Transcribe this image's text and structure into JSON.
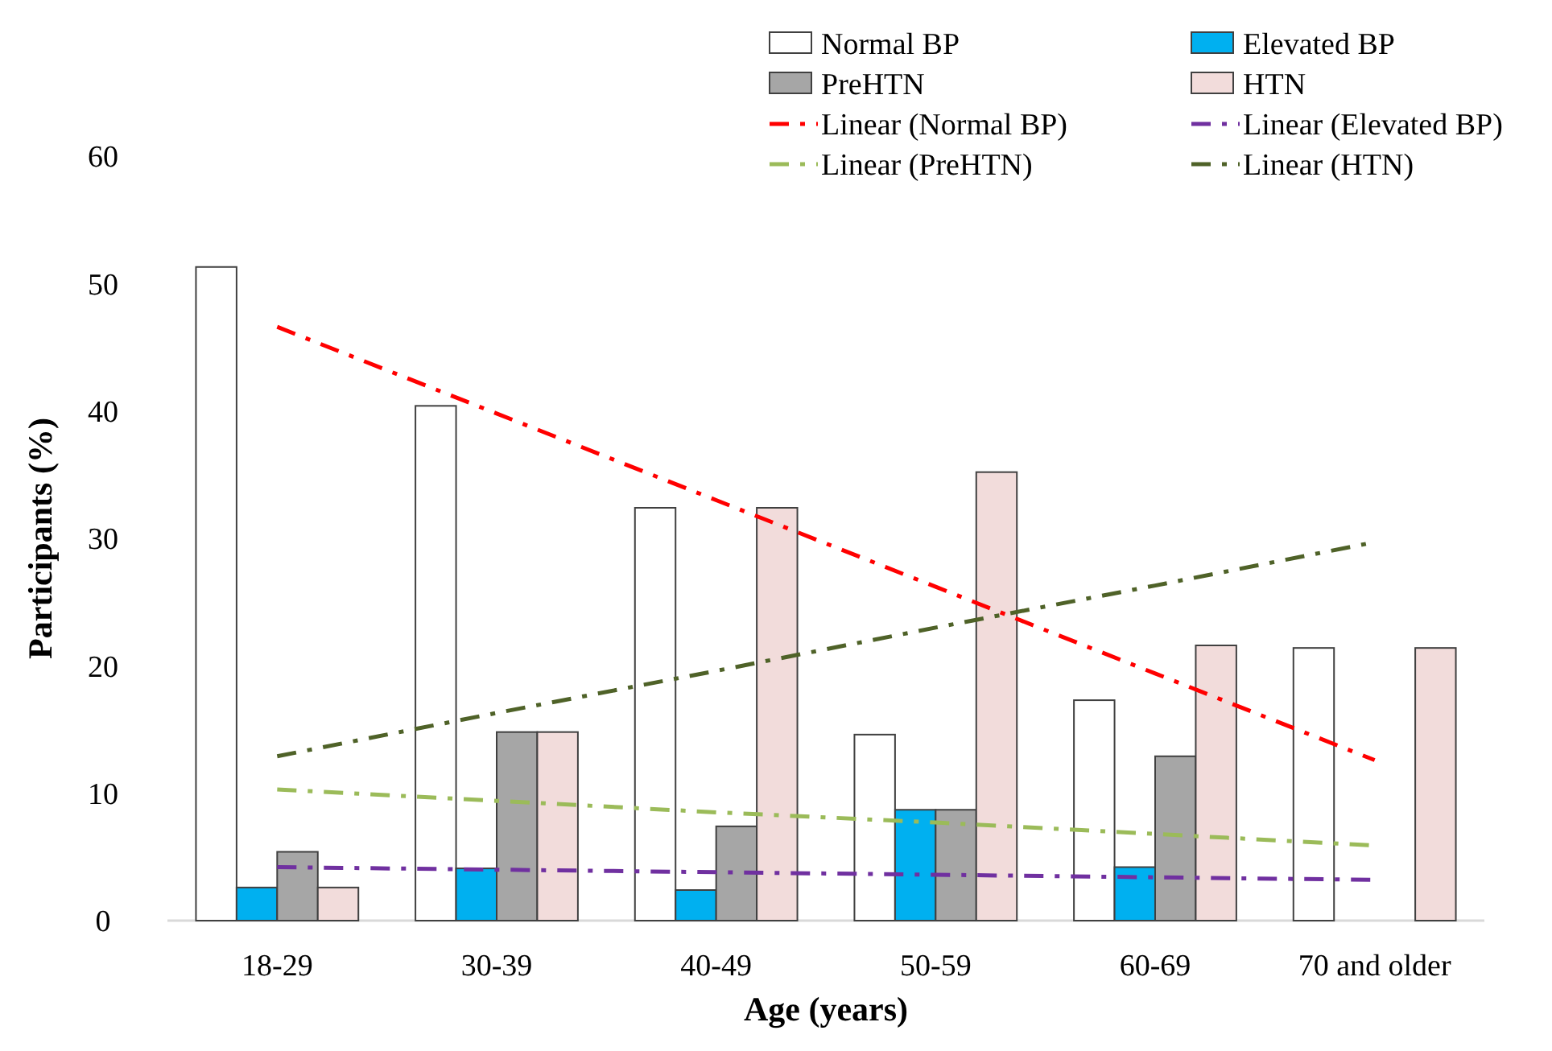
{
  "chart_data": {
    "type": "bar",
    "xlabel": "Age (years)",
    "ylabel": "Participants (%)",
    "categories": [
      "18-29",
      "30-39",
      "40-49",
      "50-59",
      "60-69",
      "70 and older"
    ],
    "ylim": [
      0,
      60
    ],
    "yticks": [
      0,
      10,
      20,
      30,
      40,
      50,
      60
    ],
    "grid": false,
    "legend": "top right",
    "series": [
      {
        "name": "Normal BP",
        "color": "#ffffff",
        "values": [
          51.3,
          40.4,
          32.4,
          14.6,
          17.3,
          21.4
        ]
      },
      {
        "name": "Elevated BP",
        "color": "#00b0f0",
        "values": [
          2.6,
          4.1,
          2.4,
          8.7,
          4.2,
          0
        ]
      },
      {
        "name": "PreHTN",
        "color": "#a6a6a6",
        "values": [
          5.4,
          14.8,
          7.4,
          8.7,
          12.9,
          0
        ]
      },
      {
        "name": "HTN",
        "color": "#f2dcdb",
        "values": [
          2.6,
          14.8,
          32.4,
          35.2,
          21.6,
          21.4
        ]
      },
      {
        "name": "Linear (Normal BP)",
        "type": "line",
        "line_style": "dashed",
        "color": "#ff0000",
        "values": [
          46.6,
          39.8,
          33.0,
          26.2,
          19.4,
          12.6
        ]
      },
      {
        "name": "Linear (Elevated BP)",
        "type": "line",
        "line_style": "dashed",
        "color": "#7030a0",
        "values": [
          4.2,
          4.0,
          3.8,
          3.6,
          3.4,
          3.2
        ]
      },
      {
        "name": "Linear (PreHTN)",
        "type": "line",
        "line_style": "dashed",
        "color": "#9bbb59",
        "values": [
          10.3,
          9.4,
          8.5,
          7.7,
          6.8,
          5.9
        ]
      },
      {
        "name": "Linear (HTN)",
        "type": "line",
        "line_style": "dashed",
        "color": "#4f6228",
        "values": [
          12.9,
          16.3,
          19.6,
          23.0,
          26.3,
          29.7
        ]
      }
    ]
  }
}
